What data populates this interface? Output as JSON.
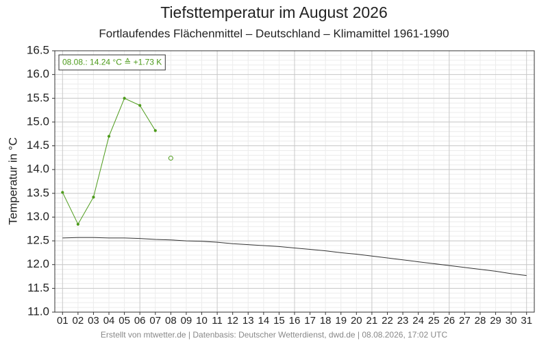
{
  "chart_data": {
    "type": "line",
    "title": "Tiefsttemperatur im August 2026",
    "subtitle": "Fortlaufendes Flächenmittel – Deutschland – Klimamittel 1961-1990",
    "ylabel": "Temperatur in °C",
    "annotation": "08.08.: 14.24 °C ≙ +1.73 K",
    "footer": "Erstellt von mtwetter.de | Datenbasis: Deutscher Wetterdienst, dwd.de | 08.08.2026, 17:02 UTC",
    "categories": [
      "01",
      "02",
      "03",
      "04",
      "05",
      "06",
      "07",
      "08",
      "09",
      "10",
      "11",
      "12",
      "13",
      "14",
      "15",
      "16",
      "17",
      "18",
      "19",
      "20",
      "21",
      "22",
      "23",
      "24",
      "25",
      "26",
      "27",
      "28",
      "29",
      "30",
      "31"
    ],
    "series": [
      {
        "color": "#4c9a1a",
        "markers": "dot",
        "values": [
          13.52,
          12.85,
          13.42,
          14.7,
          15.5,
          15.35,
          14.82,
          null,
          null,
          null,
          null,
          null,
          null,
          null,
          null,
          null,
          null,
          null,
          null,
          null,
          null,
          null,
          null,
          null,
          null,
          null,
          null,
          null,
          null,
          null,
          null
        ]
      },
      {
        "color": "#4c9a1a",
        "markers": "open",
        "values": [
          null,
          null,
          null,
          null,
          null,
          null,
          null,
          14.24,
          null,
          null,
          null,
          null,
          null,
          null,
          null,
          null,
          null,
          null,
          null,
          null,
          null,
          null,
          null,
          null,
          null,
          null,
          null,
          null,
          null,
          null,
          null
        ]
      },
      {
        "color": "#333333",
        "markers": "none",
        "values": [
          12.56,
          12.57,
          12.57,
          12.56,
          12.56,
          12.55,
          12.53,
          12.52,
          12.5,
          12.49,
          12.47,
          12.44,
          12.42,
          12.4,
          12.38,
          12.35,
          12.32,
          12.29,
          12.25,
          12.22,
          12.18,
          12.14,
          12.1,
          12.06,
          12.02,
          11.98,
          11.94,
          11.9,
          11.86,
          11.81,
          11.77
        ]
      }
    ],
    "ylim": [
      11.0,
      16.5
    ],
    "yticks": [
      {
        "value": 11,
        "label": "11.0"
      },
      11.5,
      {
        "value": 12,
        "label": "12.0"
      },
      12.5,
      {
        "value": 13,
        "label": "13.0"
      },
      13.5,
      {
        "value": 14,
        "label": "14.0"
      },
      14.5,
      {
        "value": 15,
        "label": "15.0"
      },
      15.5,
      {
        "value": 16,
        "label": "16.0"
      },
      16.5
    ],
    "grid": true
  }
}
